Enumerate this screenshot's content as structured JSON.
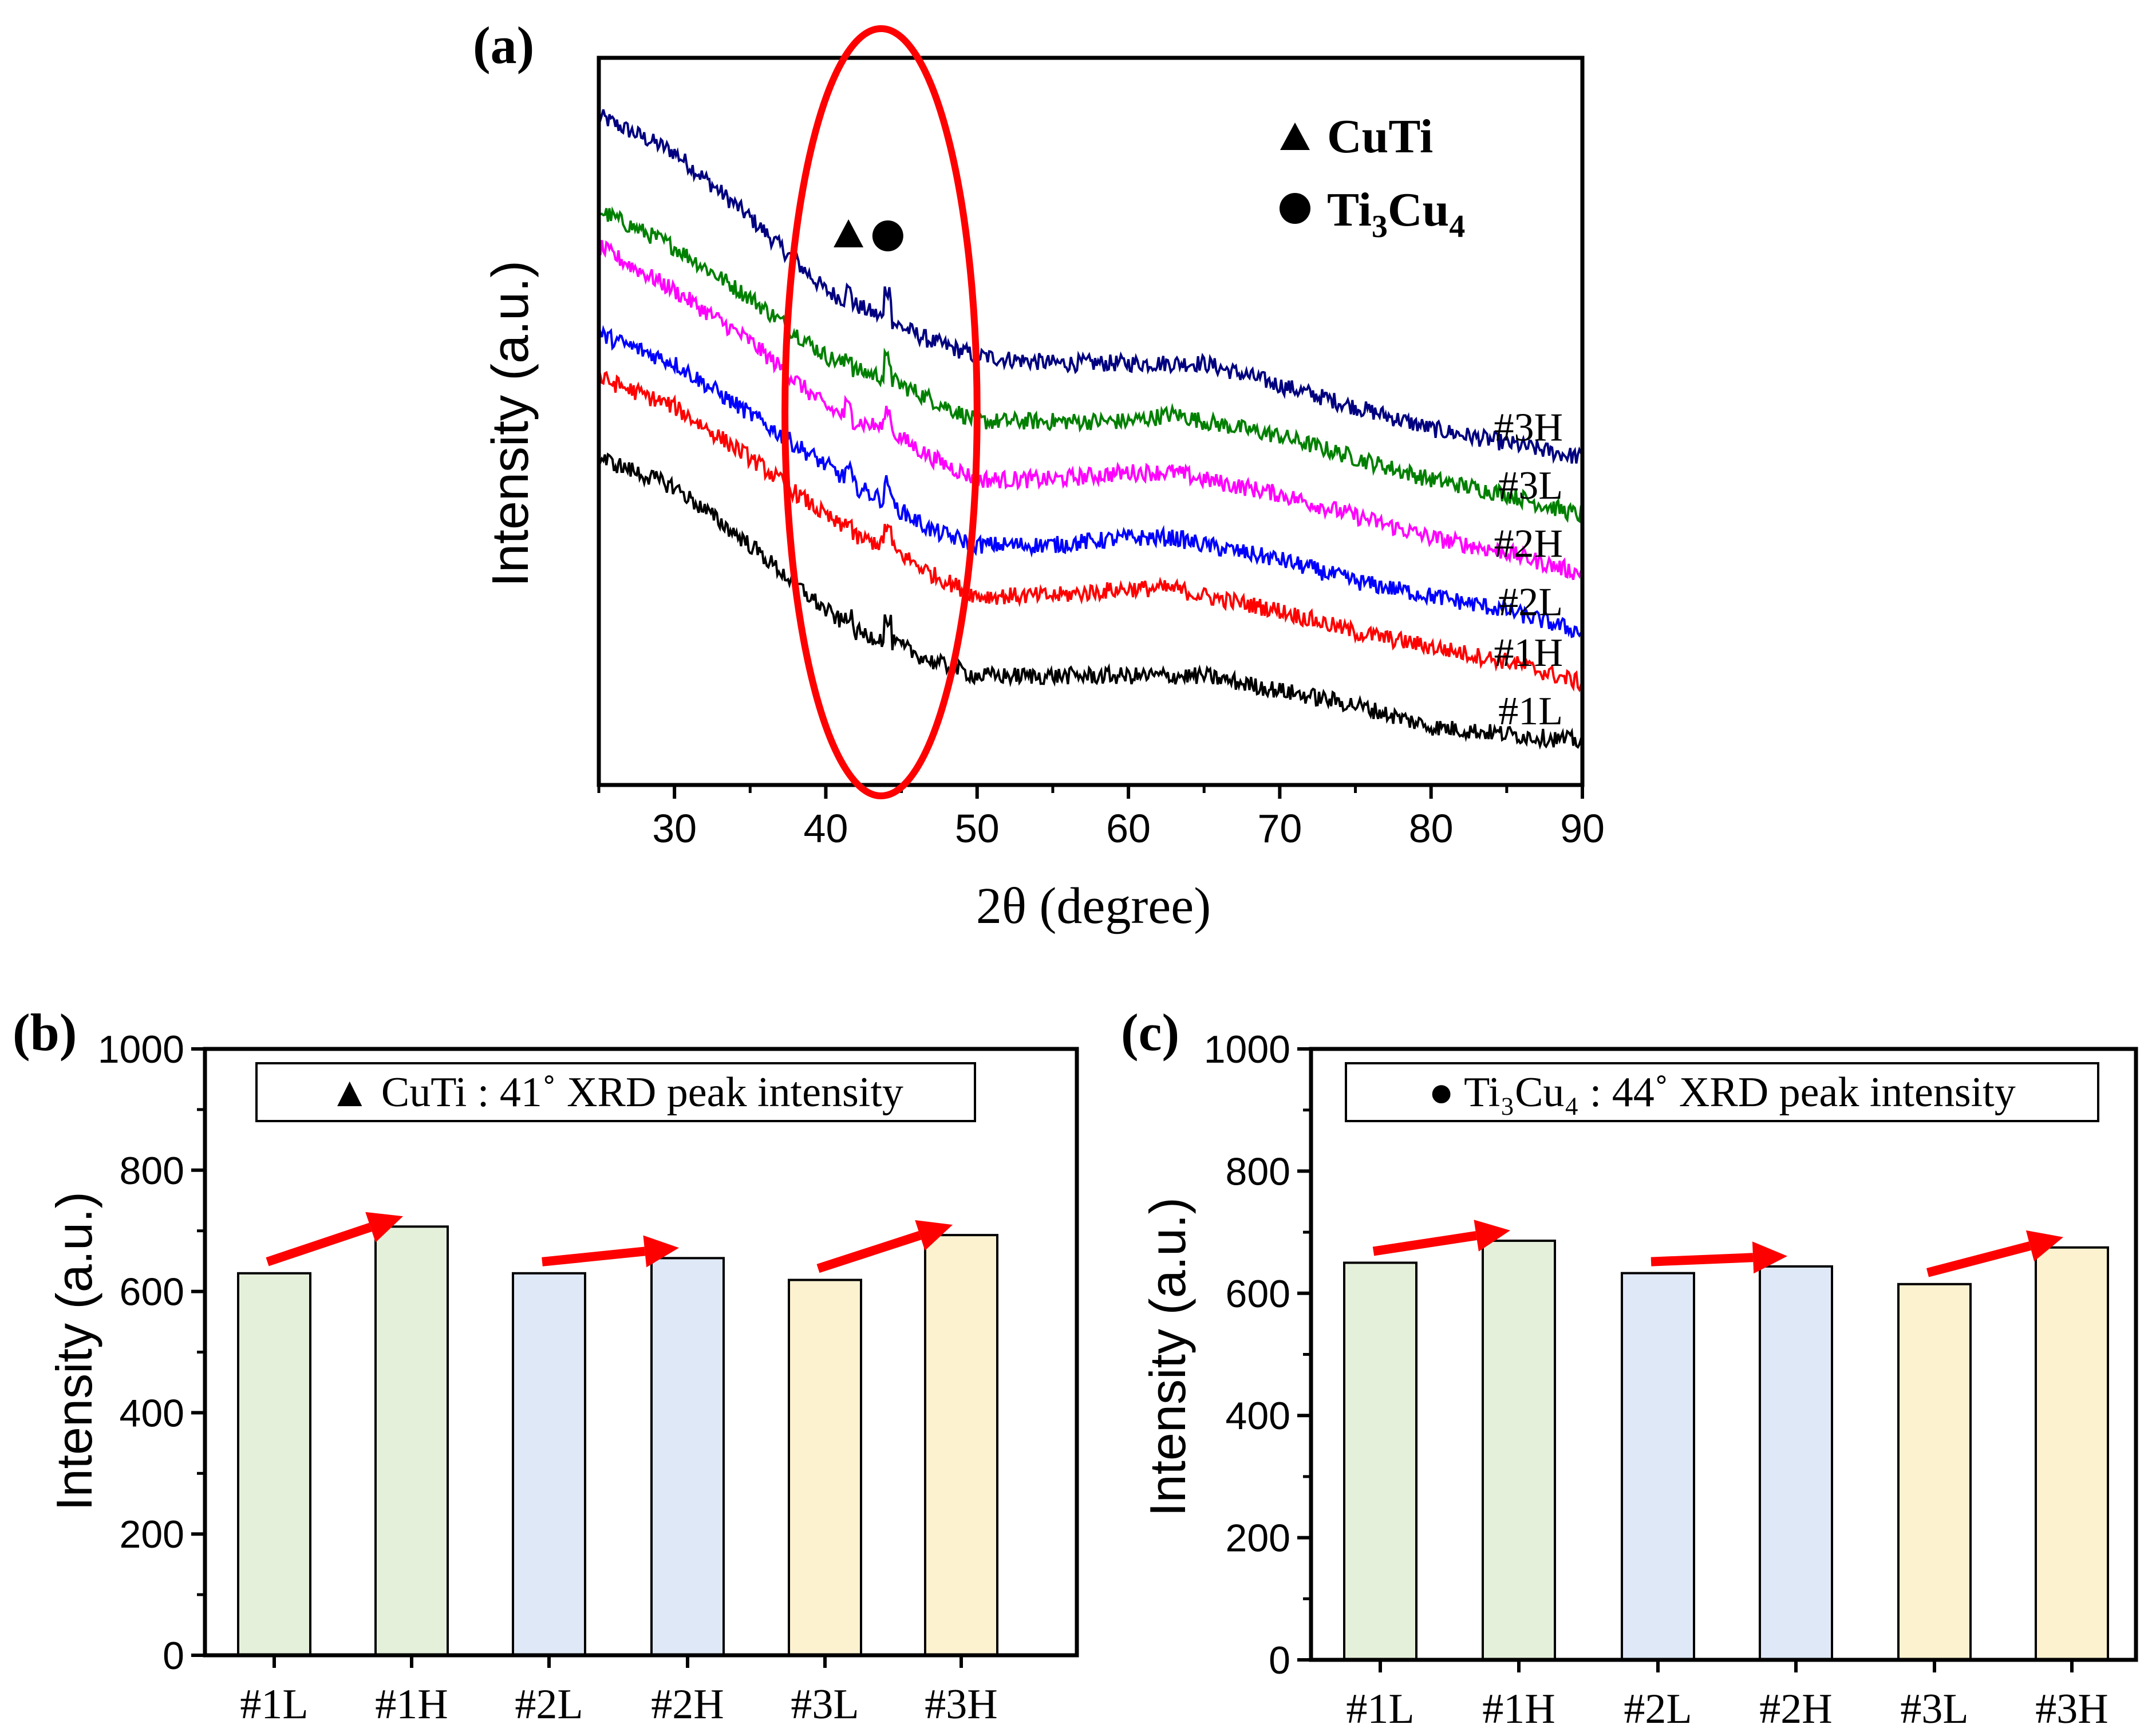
{
  "chart_data": [
    {
      "panel": "(a)",
      "type": "line",
      "xlabel": "2θ (degree)",
      "ylabel": "Intensity (a.u.)",
      "xlim": [
        25,
        90
      ],
      "xticks": [
        30,
        40,
        50,
        60,
        70,
        80,
        90
      ],
      "y_units": "arbitrary (stacked, relative scale 0-100)",
      "ylim": [
        0,
        100
      ],
      "series": [
        {
          "name": "#3H",
          "color": "#000080",
          "x": [
            25,
            30,
            35,
            40,
            42,
            44,
            47,
            50,
            55,
            60,
            63,
            65,
            70,
            75,
            80,
            85,
            90
          ],
          "y": [
            92,
            87,
            78,
            68,
            66,
            64,
            61,
            59,
            58,
            58,
            58,
            58,
            55,
            52,
            49,
            47,
            45
          ]
        },
        {
          "name": "#3L",
          "color": "#008000",
          "x": [
            25,
            30,
            35,
            40,
            42,
            44,
            47,
            50,
            55,
            60,
            63,
            65,
            70,
            75,
            80,
            85,
            90
          ],
          "y": [
            79,
            74,
            67,
            59,
            57,
            56,
            53,
            50,
            50,
            50,
            51,
            50,
            48,
            45,
            42,
            40,
            37
          ]
        },
        {
          "name": "#2H",
          "color": "#ff00ff",
          "x": [
            25,
            30,
            35,
            40,
            42,
            44,
            47,
            50,
            55,
            60,
            63,
            65,
            70,
            75,
            80,
            85,
            90
          ],
          "y": [
            74,
            68,
            61,
            52,
            50,
            49,
            45,
            42,
            42,
            43,
            43,
            42,
            40,
            37,
            34,
            32,
            29
          ]
        },
        {
          "name": "#2L",
          "color": "#0000ff",
          "x": [
            25,
            30,
            35,
            40,
            42,
            44,
            47,
            50,
            55,
            60,
            63,
            65,
            70,
            75,
            80,
            85,
            90
          ],
          "y": [
            62,
            58,
            51,
            44,
            41,
            39,
            35,
            33,
            33,
            34,
            34,
            33,
            31,
            28,
            26,
            24,
            21
          ]
        },
        {
          "name": "#1H",
          "color": "#ff0000",
          "x": [
            25,
            30,
            35,
            40,
            42,
            44,
            47,
            50,
            55,
            60,
            63,
            65,
            70,
            75,
            80,
            85,
            90
          ],
          "y": [
            56,
            52,
            45,
            37,
            34,
            33,
            29,
            26,
            26,
            27,
            27,
            26,
            24,
            21,
            19,
            17,
            14
          ]
        },
        {
          "name": "#1L",
          "color": "#000000",
          "x": [
            25,
            30,
            35,
            40,
            42,
            44,
            47,
            50,
            55,
            60,
            63,
            65,
            70,
            75,
            80,
            85,
            90
          ],
          "y": [
            45,
            41,
            33,
            24,
            21,
            20,
            17,
            15,
            15,
            15,
            15,
            15,
            13,
            11,
            8,
            7,
            6
          ]
        }
      ],
      "peaks": [
        {
          "phase": "CuTi",
          "marker": "triangle",
          "x": 41.5
        },
        {
          "phase": "Ti3Cu4",
          "marker": "circle",
          "x": 44.1
        }
      ],
      "legend": {
        "placement": "top-right",
        "entries": [
          "CuTi",
          "Ti3Cu4"
        ],
        "ti3cu4_base": "Ti",
        "ti3cu4_sub1": "3",
        "ti3cu4_mid": "Cu",
        "ti3cu4_sub2": "4"
      },
      "annotation": "red ellipse highlighting 2θ ≈ 38–50°",
      "highlight_range": [
        37.3,
        50.0
      ]
    },
    {
      "panel": "(b)",
      "type": "bar",
      "title": "▲ CuTi : 41˚ XRD peak intensity",
      "categories": [
        "#1L",
        "#1H",
        "#2L",
        "#2H",
        "#3L",
        "#3H"
      ],
      "values": [
        630,
        707,
        630,
        655,
        619,
        693
      ],
      "bar_colors": [
        "#e5f0db",
        "#e5f0db",
        "#dee8f6",
        "#dee8f6",
        "#fdf2cf",
        "#fdf2cf"
      ],
      "ylabel": "Intensity (a.u.)",
      "ylim": [
        0,
        1000
      ],
      "yticks": [
        0,
        200,
        400,
        600,
        800,
        1000
      ],
      "arrows": [
        [
          0,
          1
        ],
        [
          2,
          3
        ],
        [
          4,
          5
        ]
      ]
    },
    {
      "panel": "(c)",
      "type": "bar",
      "title": "● Ti₃Cu₄ : 44˚ XRD peak intensity",
      "categories": [
        "#1L",
        "#1H",
        "#2L",
        "#2H",
        "#3L",
        "#3H"
      ],
      "values": [
        650,
        686,
        633,
        644,
        615,
        675
      ],
      "bar_colors": [
        "#e5f0db",
        "#e5f0db",
        "#dee8f6",
        "#dee8f6",
        "#fdf2cf",
        "#fdf2cf"
      ],
      "ylabel": "Intensity (a.u.)",
      "ylim": [
        0,
        1000
      ],
      "yticks": [
        0,
        200,
        400,
        600,
        800,
        1000
      ],
      "arrows": [
        [
          0,
          1
        ],
        [
          2,
          3
        ],
        [
          4,
          5
        ]
      ]
    }
  ],
  "colors": {
    "arrow": "#ff0000",
    "ellipse": "#ff0000",
    "axis": "#000000"
  }
}
